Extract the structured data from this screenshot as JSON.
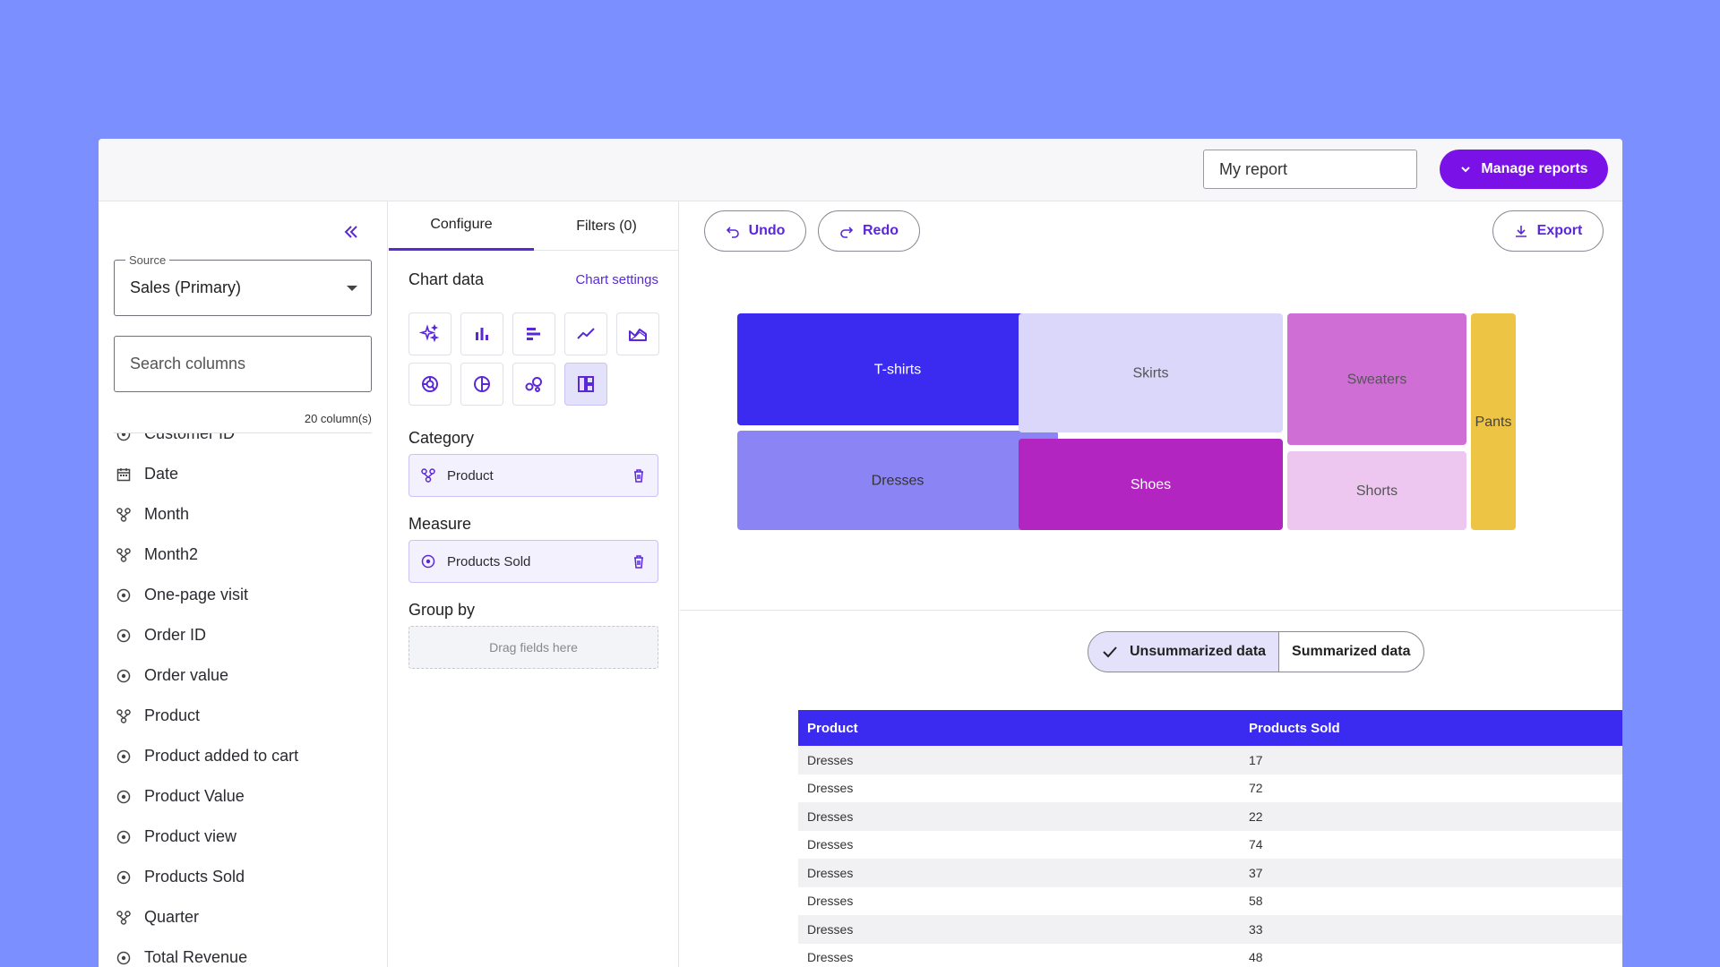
{
  "header": {
    "report_name": "My report",
    "manage_label": "Manage reports"
  },
  "sidebar": {
    "source_label": "Source",
    "source_value": "Sales (Primary)",
    "search_placeholder": "Search columns",
    "column_count": "20 column(s)",
    "fields": [
      {
        "label": "Customer ID",
        "icon": "measure-icon"
      },
      {
        "label": "Date",
        "icon": "calendar-icon"
      },
      {
        "label": "Month",
        "icon": "dimension-icon"
      },
      {
        "label": "Month2",
        "icon": "dimension-icon"
      },
      {
        "label": "One-page visit",
        "icon": "measure-icon"
      },
      {
        "label": "Order ID",
        "icon": "measure-icon"
      },
      {
        "label": "Order value",
        "icon": "measure-icon"
      },
      {
        "label": "Product",
        "icon": "dimension-icon"
      },
      {
        "label": "Product added to cart",
        "icon": "measure-icon"
      },
      {
        "label": "Product Value",
        "icon": "measure-icon"
      },
      {
        "label": "Product view",
        "icon": "measure-icon"
      },
      {
        "label": "Products Sold",
        "icon": "measure-icon"
      },
      {
        "label": "Quarter",
        "icon": "dimension-icon"
      },
      {
        "label": "Total Revenue",
        "icon": "measure-icon"
      }
    ]
  },
  "config": {
    "tab_configure": "Configure",
    "tab_filters": "Filters (0)",
    "chart_data_title": "Chart data",
    "chart_settings_label": "Chart settings",
    "chart_types": [
      "sparkle-icon",
      "bar-chart-icon",
      "horizontal-bar-icon",
      "line-chart-icon",
      "area-chart-icon",
      "donut-chart-icon",
      "pie-chart-icon",
      "bubble-chart-icon",
      "treemap-icon"
    ],
    "selected_chart_type": "treemap-icon",
    "category_title": "Category",
    "category_field": "Product",
    "measure_title": "Measure",
    "measure_field": "Products Sold",
    "groupby_title": "Group by",
    "groupby_placeholder": "Drag fields here"
  },
  "toolbar": {
    "undo_label": "Undo",
    "redo_label": "Redo",
    "export_label": "Export"
  },
  "chart_data": {
    "type": "treemap",
    "categories": [
      "T-shirts",
      "Dresses",
      "Skirts",
      "Shoes",
      "Sweaters",
      "Shorts",
      "Pants"
    ],
    "colors": [
      "#3b2bf0",
      "#8b84f5",
      "#dad7fb",
      "#b225c0",
      "#cf6fd6",
      "#edc7ef",
      "#eec445"
    ],
    "label_colors": [
      "#ffffff",
      "#333333",
      "#555555",
      "#ffffff",
      "#555555",
      "#555555",
      "#444444"
    ]
  },
  "view_toggle": {
    "unsummarized_label": "Unsummarized data",
    "summarized_label": "Summarized data",
    "active": "unsummarized"
  },
  "table": {
    "headers": [
      "Product",
      "Products Sold"
    ],
    "rows": [
      [
        "Dresses",
        "17"
      ],
      [
        "Dresses",
        "72"
      ],
      [
        "Dresses",
        "22"
      ],
      [
        "Dresses",
        "74"
      ],
      [
        "Dresses",
        "37"
      ],
      [
        "Dresses",
        "58"
      ],
      [
        "Dresses",
        "33"
      ],
      [
        "Dresses",
        "48"
      ]
    ]
  },
  "colors": {
    "accent": "#5a28d6",
    "primary_button": "#7a12e8",
    "table_header": "#3b2bf0",
    "background": "#7b8ffe"
  }
}
